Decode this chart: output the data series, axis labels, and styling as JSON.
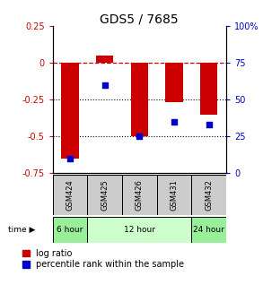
{
  "title": "GDS5 / 7685",
  "samples": [
    "GSM424",
    "GSM425",
    "GSM426",
    "GSM431",
    "GSM432"
  ],
  "log_ratio": [
    -0.65,
    0.05,
    -0.5,
    -0.27,
    -0.35
  ],
  "percentile_rank": [
    10,
    60,
    25,
    35,
    33
  ],
  "ylim_left": [
    -0.75,
    0.25
  ],
  "ylim_right": [
    0,
    100
  ],
  "yticks_left": [
    -0.75,
    -0.5,
    -0.25,
    0,
    0.25
  ],
  "ytick_labels_left": [
    "-0.75",
    "-0.5",
    "-0.25",
    "0",
    "0.25"
  ],
  "yticks_right": [
    0,
    25,
    50,
    75,
    100
  ],
  "ytick_labels_right": [
    "0",
    "25",
    "50",
    "75",
    "100%"
  ],
  "time_groups": [
    {
      "label": "6 hour",
      "start": 0,
      "end": 0,
      "color": "#99ee99"
    },
    {
      "label": "12 hour",
      "start": 1,
      "end": 3,
      "color": "#ccffcc"
    },
    {
      "label": "24 hour",
      "start": 4,
      "end": 4,
      "color": "#99ee99"
    }
  ],
  "bar_color": "#cc0000",
  "dot_color": "#0000cc",
  "hline_color": "#cc0000",
  "dotted_line_color": "#000000",
  "background_color": "#ffffff",
  "sample_box_color": "#cccccc",
  "title_fontsize": 10,
  "tick_fontsize": 7,
  "legend_fontsize": 7,
  "bar_width": 0.5
}
